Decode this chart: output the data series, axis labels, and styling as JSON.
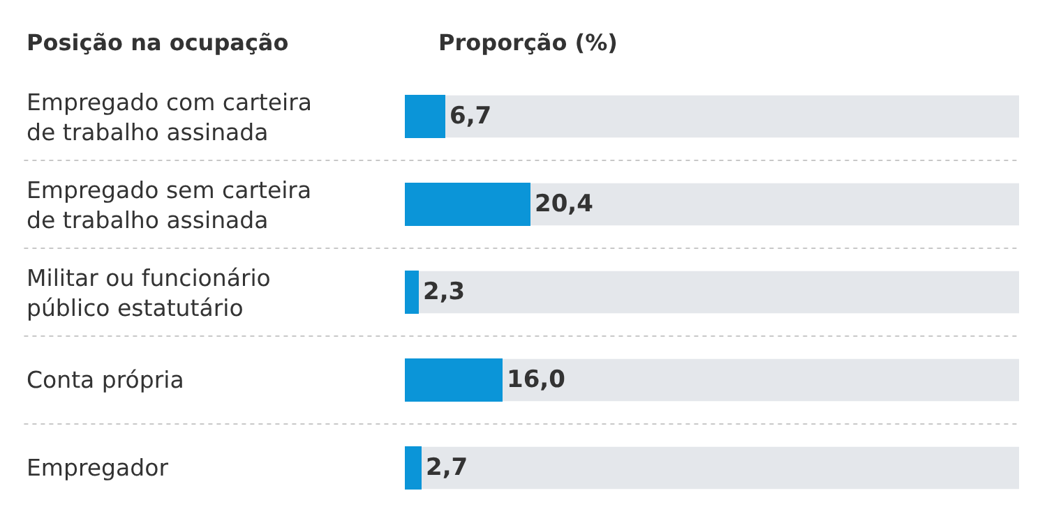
{
  "chart_data": {
    "type": "bar",
    "orientation": "horizontal",
    "ylabel": "Posição na ocupação",
    "xlabel": "Proporção (%)",
    "categories": [
      "Empregado com carteira de trabalho assinada",
      "Empregado sem carteira de trabalho assinada",
      "Militar ou funcionário público estatutário",
      "Conta própria",
      "Empregador"
    ],
    "values": [
      6.7,
      20.4,
      2.3,
      16.0,
      2.7
    ],
    "value_labels": [
      "6,7",
      "20,4",
      "2,3",
      "16,0",
      "2,7"
    ],
    "color": "#0b95d8",
    "xlim": [
      0,
      100
    ],
    "tick_labels": "y",
    "grid": false,
    "legend": false
  }
}
